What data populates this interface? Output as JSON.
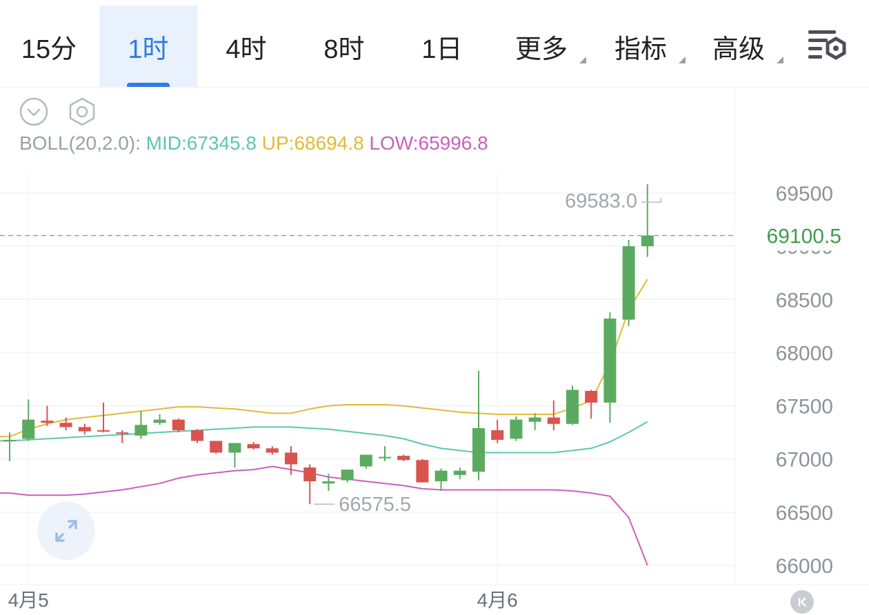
{
  "tabs": [
    {
      "label": "15分",
      "active": false,
      "dropdown": false
    },
    {
      "label": "1时",
      "active": true,
      "dropdown": false
    },
    {
      "label": "4时",
      "active": false,
      "dropdown": false
    },
    {
      "label": "8时",
      "active": false,
      "dropdown": false
    },
    {
      "label": "1日",
      "active": false,
      "dropdown": false
    },
    {
      "label": "更多",
      "active": false,
      "dropdown": true
    },
    {
      "label": "指标",
      "active": false,
      "dropdown": true
    },
    {
      "label": "高级",
      "active": false,
      "dropdown": true
    }
  ],
  "indicator": {
    "label": "BOLL(20,2.0):",
    "mid": "MID:67345.8",
    "up": "UP:68694.8",
    "low": "LOW:65996.8"
  },
  "colors": {
    "up_candle": "#5aab5f",
    "down_candle": "#d9534f",
    "mid": "#5cc6ad",
    "upper": "#e6b833",
    "lower": "#c95fc0",
    "accent": "#2f7be6",
    "current_price": "#3e9b4b"
  },
  "icons": [
    "chevron-down-icon",
    "hexagon-settings-icon",
    "chart-settings-icon",
    "expand-icon",
    "chevron-right-end-icon"
  ],
  "chart_data": {
    "type": "candlestick",
    "y_ticks": [
      "69500",
      "69000",
      "68500",
      "68000",
      "67500",
      "67000",
      "66500",
      "66000"
    ],
    "x_labels": [
      {
        "label": "4月5",
        "index": 1
      },
      {
        "label": "4月6",
        "index": 26
      }
    ],
    "current_price": "69100.5",
    "max_marker": {
      "label": "69583.0",
      "value": 69583.0,
      "index": 35
    },
    "min_marker": {
      "label": "66575.5",
      "value": 66575.5,
      "index": 16
    },
    "candles": [
      {
        "o": 67180,
        "h": 67250,
        "l": 66980,
        "c": 67180
      },
      {
        "o": 67190,
        "h": 67560,
        "l": 67170,
        "c": 67370
      },
      {
        "o": 67360,
        "h": 67500,
        "l": 67310,
        "c": 67340
      },
      {
        "o": 67340,
        "h": 67390,
        "l": 67270,
        "c": 67300
      },
      {
        "o": 67300,
        "h": 67330,
        "l": 67230,
        "c": 67260
      },
      {
        "o": 67270,
        "h": 67530,
        "l": 67250,
        "c": 67260
      },
      {
        "o": 67250,
        "h": 67270,
        "l": 67150,
        "c": 67240
      },
      {
        "o": 67220,
        "h": 67450,
        "l": 67190,
        "c": 67320
      },
      {
        "o": 67340,
        "h": 67420,
        "l": 67320,
        "c": 67370
      },
      {
        "o": 67370,
        "h": 67380,
        "l": 67250,
        "c": 67270
      },
      {
        "o": 67270,
        "h": 67280,
        "l": 67150,
        "c": 67170
      },
      {
        "o": 67170,
        "h": 67170,
        "l": 67050,
        "c": 67060
      },
      {
        "o": 67060,
        "h": 67150,
        "l": 66920,
        "c": 67150
      },
      {
        "o": 67140,
        "h": 67160,
        "l": 67090,
        "c": 67100
      },
      {
        "o": 67100,
        "h": 67120,
        "l": 67040,
        "c": 67060
      },
      {
        "o": 67060,
        "h": 67120,
        "l": 66850,
        "c": 66950
      },
      {
        "o": 66920,
        "h": 66950,
        "l": 66575.5,
        "c": 66790
      },
      {
        "o": 66770,
        "h": 66860,
        "l": 66700,
        "c": 66790
      },
      {
        "o": 66800,
        "h": 66900,
        "l": 66780,
        "c": 66900
      },
      {
        "o": 66930,
        "h": 67030,
        "l": 66910,
        "c": 67040
      },
      {
        "o": 67010,
        "h": 67120,
        "l": 66980,
        "c": 67020
      },
      {
        "o": 67030,
        "h": 67040,
        "l": 66980,
        "c": 66990
      },
      {
        "o": 66990,
        "h": 67000,
        "l": 66780,
        "c": 66780
      },
      {
        "o": 66790,
        "h": 66910,
        "l": 66700,
        "c": 66890
      },
      {
        "o": 66850,
        "h": 66920,
        "l": 66810,
        "c": 66890
      },
      {
        "o": 66880,
        "h": 67830,
        "l": 66800,
        "c": 67290
      },
      {
        "o": 67270,
        "h": 67370,
        "l": 67150,
        "c": 67180
      },
      {
        "o": 67190,
        "h": 67400,
        "l": 67170,
        "c": 67370
      },
      {
        "o": 67350,
        "h": 67430,
        "l": 67270,
        "c": 67390
      },
      {
        "o": 67390,
        "h": 67550,
        "l": 67270,
        "c": 67330
      },
      {
        "o": 67330,
        "h": 67690,
        "l": 67320,
        "c": 67650
      },
      {
        "o": 67640,
        "h": 67650,
        "l": 67380,
        "c": 67530
      },
      {
        "o": 67530,
        "h": 68380,
        "l": 67340,
        "c": 68320
      },
      {
        "o": 68310,
        "h": 69060,
        "l": 68250,
        "c": 69000
      },
      {
        "o": 69000,
        "h": 69583.0,
        "l": 68900,
        "c": 69100.5
      }
    ],
    "boll": {
      "mid": [
        67170,
        67180,
        67190,
        67200,
        67210,
        67220,
        67230,
        67240,
        67250,
        67260,
        67270,
        67280,
        67290,
        67300,
        67300,
        67300,
        67290,
        67280,
        67260,
        67240,
        67220,
        67190,
        67140,
        67100,
        67080,
        67060,
        67060,
        67060,
        67060,
        67060,
        67080,
        67100,
        67160,
        67250,
        67350
      ],
      "upper": [
        67210,
        67280,
        67330,
        67370,
        67390,
        67410,
        67430,
        67450,
        67470,
        67490,
        67490,
        67480,
        67470,
        67450,
        67430,
        67430,
        67470,
        67500,
        67510,
        67510,
        67510,
        67500,
        67480,
        67460,
        67440,
        67430,
        67420,
        67420,
        67420,
        67420,
        67480,
        67550,
        67900,
        68400,
        68690
      ],
      "lower": [
        66680,
        66660,
        66660,
        66660,
        66670,
        66690,
        66710,
        66740,
        66770,
        66820,
        66850,
        66870,
        66890,
        66900,
        66930,
        66900,
        66870,
        66830,
        66810,
        66790,
        66770,
        66750,
        66720,
        66710,
        66710,
        66710,
        66710,
        66710,
        66710,
        66710,
        66700,
        66680,
        66650,
        66450,
        66000
      ]
    }
  }
}
